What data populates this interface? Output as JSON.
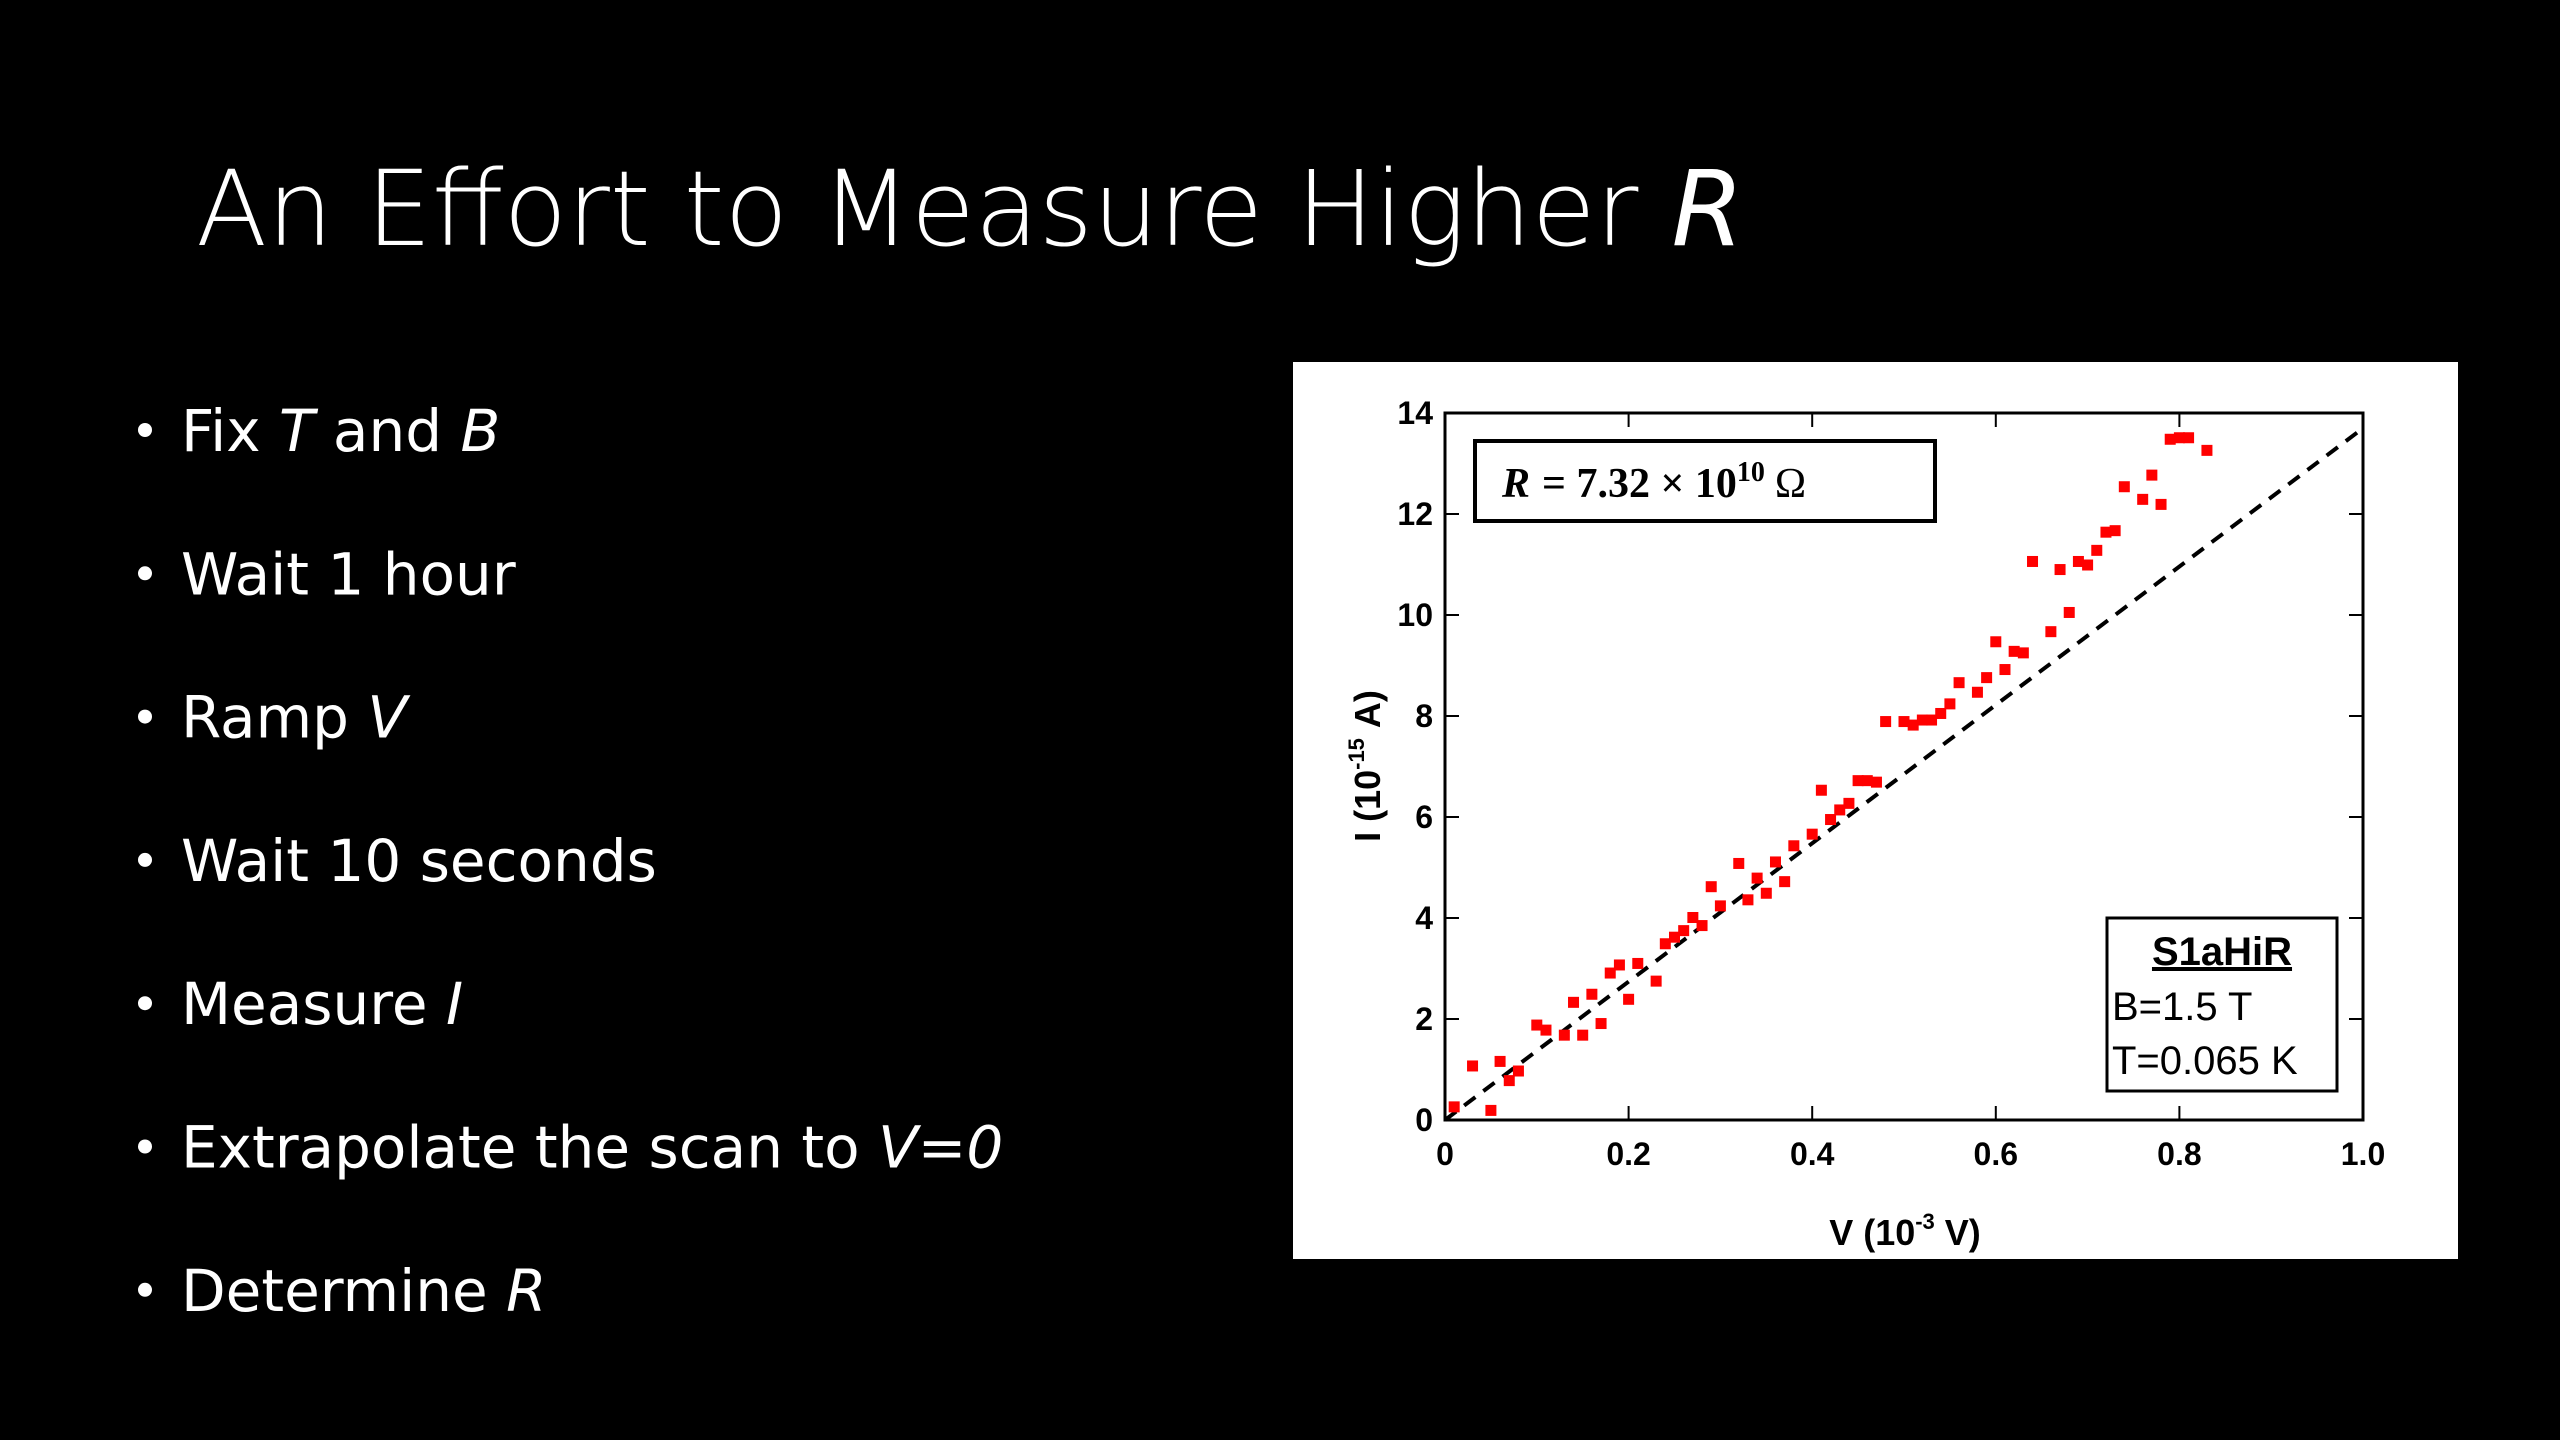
{
  "slide": {
    "title": [
      {
        "text": "An Effort to Measure Higher "
      },
      {
        "text": "R",
        "italic": true
      }
    ],
    "bullets": [
      [
        {
          "text": "Fix "
        },
        {
          "text": "T",
          "italic": true
        },
        {
          "text": " and "
        },
        {
          "text": "B",
          "italic": true
        }
      ],
      [
        {
          "text": "Wait 1 hour"
        }
      ],
      [
        {
          "text": "Ramp "
        },
        {
          "text": "V",
          "italic": true
        }
      ],
      [
        {
          "text": "Wait 10 seconds"
        }
      ],
      [
        {
          "text": "Measure "
        },
        {
          "text": "I",
          "italic": true
        }
      ],
      [
        {
          "text": "Extrapolate the scan to "
        },
        {
          "text": "V=0",
          "italic": true
        }
      ],
      [
        {
          "text": "Determine "
        },
        {
          "text": "R",
          "italic": true
        }
      ]
    ]
  },
  "chart_data": {
    "type": "scatter",
    "xlabel": [
      "V (10",
      "-3",
      "V)"
    ],
    "ylabel": [
      "I (10",
      "-15",
      "A)"
    ],
    "annotation": {
      "symbol": "R",
      "text": "= 7.32 × 10",
      "exponent": "10",
      "unit": "Ω"
    },
    "legend_box": [
      "S1aHiR",
      "B=1.5 T",
      "T=0.065 K"
    ],
    "xlim": [
      0,
      1
    ],
    "ylim": [
      0,
      14
    ],
    "xticks": [
      0,
      0.2,
      0.4,
      0.6,
      0.8,
      {
        "value": 1,
        "label": "1.0"
      }
    ],
    "yticks": [
      0,
      2,
      4,
      6,
      8,
      10,
      12,
      14
    ],
    "color": "#ff0000",
    "x": [
      0.01,
      0.03,
      0.05,
      0.06,
      0.07,
      0.08,
      0.1,
      0.11,
      0.13,
      0.14,
      0.15,
      0.16,
      0.17,
      0.18,
      0.19,
      0.2,
      0.21,
      0.23,
      0.24,
      0.25,
      0.26,
      0.27,
      0.28,
      0.29,
      0.3,
      0.32,
      0.33,
      0.34,
      0.35,
      0.36,
      0.37,
      0.38,
      0.4,
      0.41,
      0.42,
      0.43,
      0.44,
      0.45,
      0.46,
      0.47,
      0.48,
      0.5,
      0.51,
      0.52,
      0.53,
      0.54,
      0.55,
      0.56,
      0.58,
      0.59,
      0.6,
      0.61,
      0.62,
      0.63,
      0.64,
      0.66,
      0.67,
      0.68,
      0.69,
      0.7,
      0.71,
      0.72,
      0.73,
      0.74,
      0.76,
      0.77,
      0.78,
      0.79,
      0.8,
      0.81,
      0.83
    ],
    "values": [
      0.26,
      1.07,
      0.19,
      1.16,
      0.78,
      0.97,
      1.88,
      1.78,
      1.68,
      2.33,
      1.68,
      2.49,
      1.91,
      2.91,
      3.07,
      2.39,
      3.1,
      2.75,
      3.49,
      3.62,
      3.75,
      4.01,
      3.85,
      4.62,
      4.24,
      5.08,
      4.36,
      4.79,
      4.49,
      5.11,
      4.72,
      5.43,
      5.66,
      6.53,
      5.95,
      6.14,
      6.27,
      6.72,
      6.72,
      6.69,
      7.89,
      7.89,
      7.82,
      7.92,
      7.92,
      8.05,
      8.24,
      8.66,
      8.47,
      8.76,
      9.47,
      8.92,
      9.28,
      9.25,
      11.06,
      9.67,
      10.9,
      10.05,
      11.06,
      10.99,
      11.28,
      11.64,
      11.67,
      12.54,
      12.29,
      12.77,
      12.19,
      13.48,
      13.51,
      13.51,
      13.26
    ],
    "fit": {
      "x": [
        0,
        1
      ],
      "values": [
        0,
        13.7
      ],
      "color": "#000000",
      "dashed": true
    }
  }
}
